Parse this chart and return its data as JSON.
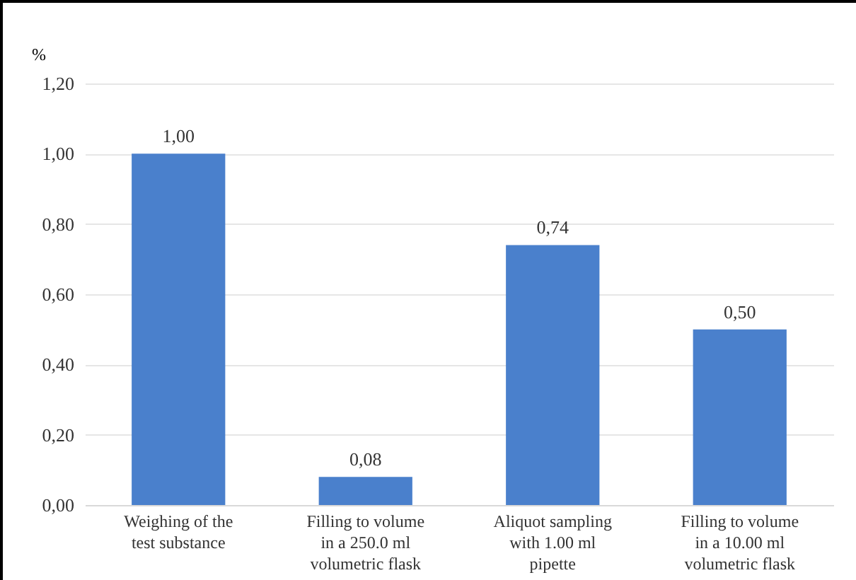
{
  "chart_data": {
    "type": "bar",
    "ylabel": "%",
    "categories": [
      "Weighing of the test substance",
      "Filling to volume in a 250.0 ml volumetric flask",
      "Aliquot sampling with 1.00 ml pipette",
      "Filling to volume in a 10.00 ml volumetric flask"
    ],
    "values": [
      1.0,
      0.08,
      0.74,
      0.5
    ],
    "value_labels": [
      "1,00",
      "0,08",
      "0,74",
      "0,50"
    ],
    "color": "#4a80cc",
    "ylim": [
      0,
      1.2
    ],
    "yticks": [
      {
        "value": 0,
        "label": "0,00"
      },
      {
        "value": 0.2,
        "label": "0,20"
      },
      {
        "value": 0.4,
        "label": "0,40"
      },
      {
        "value": 0.6,
        "label": "0,60"
      },
      {
        "value": 0.8,
        "label": "0,80"
      },
      {
        "value": 1,
        "label": "1,00"
      },
      {
        "value": 1.2,
        "label": "1,20"
      }
    ],
    "grid": true
  }
}
